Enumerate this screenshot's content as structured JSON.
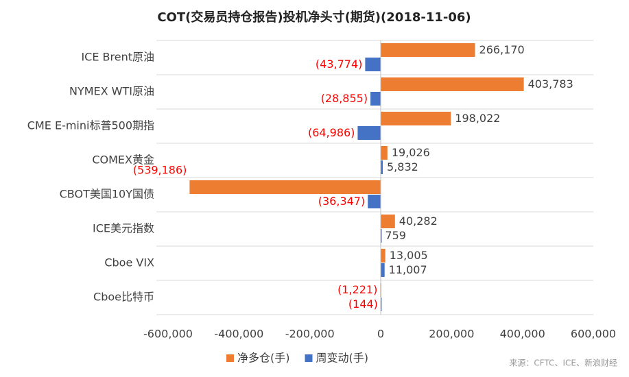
{
  "chart_data": {
    "type": "bar",
    "orientation": "horizontal",
    "title": "COT(交易员持仓报告)投机净头寸(期货)(2018-11-06)",
    "categories": [
      "ICE Brent原油",
      "NYMEX WTI原油",
      "CME E-mini标普500期指",
      "COMEX黄金",
      "CBOT美国10Y国债",
      "ICE美元指数",
      "Cboe VIX",
      "Cboe比特币"
    ],
    "series": [
      {
        "name": "净多仓(手)",
        "color": "#ED7D31",
        "values": [
          266170,
          403783,
          198022,
          19026,
          -539186,
          40282,
          13005,
          -1221
        ],
        "value_labels": [
          "266,170",
          "403,783",
          "198,022",
          "19,026",
          "(539,186)",
          "40,282",
          "13,005",
          "(1,221)"
        ]
      },
      {
        "name": "周变动(手)",
        "color": "#4472C4",
        "values": [
          -43774,
          -28855,
          -64986,
          5832,
          -36347,
          759,
          11007,
          -144
        ],
        "value_labels": [
          "(43,774)",
          "(28,855)",
          "(64,986)",
          "5,832",
          "(36,347)",
          "759",
          "11,007",
          "(144)"
        ]
      }
    ],
    "negative_label_color": "#FF0000",
    "xlim": [
      -600000,
      600000
    ],
    "xticks": [
      {
        "value": -600000,
        "label": "-600,000"
      },
      {
        "value": -400000,
        "label": "-400,000"
      },
      {
        "value": -200000,
        "label": "-200,000"
      },
      0,
      {
        "value": 200000,
        "label": "200,000"
      },
      {
        "value": 400000,
        "label": "400,000"
      },
      {
        "value": 600000,
        "label": "600,000"
      }
    ],
    "legend": "bottom",
    "source": "来源：CFTC、ICE、新浪财经"
  }
}
